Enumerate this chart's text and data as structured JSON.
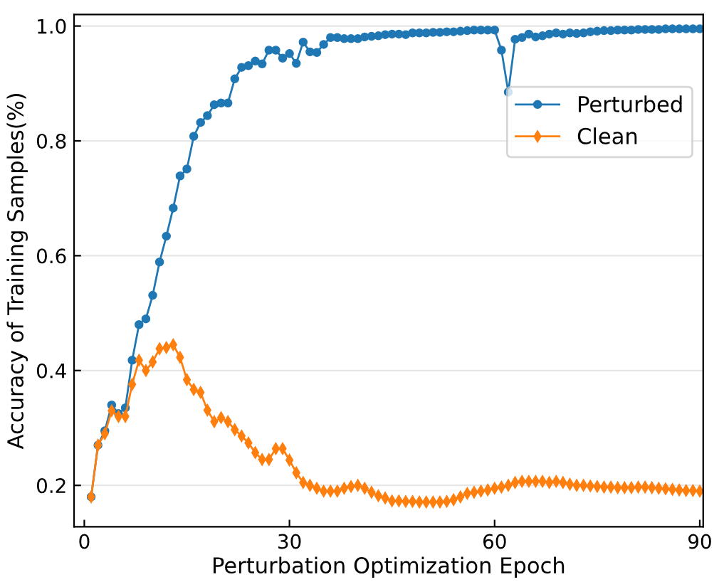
{
  "chart_data": {
    "type": "line",
    "xlabel": "Perturbation Optimization Epoch",
    "ylabel": "Accuracy of Training Samples(%)",
    "x": [
      1,
      2,
      3,
      4,
      5,
      6,
      7,
      8,
      9,
      10,
      11,
      12,
      13,
      14,
      15,
      16,
      17,
      18,
      19,
      20,
      21,
      22,
      23,
      24,
      25,
      26,
      27,
      28,
      29,
      30,
      31,
      32,
      33,
      34,
      35,
      36,
      37,
      38,
      39,
      40,
      41,
      42,
      43,
      44,
      45,
      46,
      47,
      48,
      49,
      50,
      51,
      52,
      53,
      54,
      55,
      56,
      57,
      58,
      59,
      60,
      61,
      62,
      63,
      64,
      65,
      66,
      67,
      68,
      69,
      70,
      71,
      72,
      73,
      74,
      75,
      76,
      77,
      78,
      79,
      80,
      81,
      82,
      83,
      84,
      85,
      86,
      87,
      88,
      89,
      90
    ],
    "series": [
      {
        "name": "Perturbed",
        "color": "#1f77b4",
        "marker": "circle",
        "values": [
          0.18,
          0.27,
          0.295,
          0.34,
          0.325,
          0.335,
          0.418,
          0.48,
          0.49,
          0.531,
          0.589,
          0.634,
          0.683,
          0.739,
          0.751,
          0.808,
          0.832,
          0.844,
          0.863,
          0.866,
          0.866,
          0.908,
          0.928,
          0.931,
          0.939,
          0.934,
          0.958,
          0.958,
          0.944,
          0.952,
          0.935,
          0.972,
          0.955,
          0.954,
          0.968,
          0.98,
          0.98,
          0.978,
          0.978,
          0.978,
          0.981,
          0.982,
          0.983,
          0.985,
          0.986,
          0.986,
          0.985,
          0.988,
          0.988,
          0.988,
          0.989,
          0.989,
          0.99,
          0.99,
          0.991,
          0.992,
          0.993,
          0.993,
          0.993,
          0.993,
          0.958,
          0.885,
          0.977,
          0.98,
          0.986,
          0.981,
          0.983,
          0.986,
          0.988,
          0.986,
          0.988,
          0.987,
          0.988,
          0.99,
          0.991,
          0.992,
          0.992,
          0.993,
          0.993,
          0.993,
          0.994,
          0.994,
          0.994,
          0.994,
          0.995,
          0.995,
          0.995,
          0.995,
          0.995,
          0.995
        ]
      },
      {
        "name": "Clean",
        "color": "#ff7f0e",
        "marker": "diamond",
        "values": [
          0.18,
          0.27,
          0.29,
          0.33,
          0.32,
          0.32,
          0.376,
          0.418,
          0.4,
          0.415,
          0.438,
          0.44,
          0.445,
          0.423,
          0.384,
          0.367,
          0.362,
          0.331,
          0.311,
          0.318,
          0.311,
          0.297,
          0.286,
          0.274,
          0.257,
          0.245,
          0.245,
          0.264,
          0.264,
          0.244,
          0.222,
          0.205,
          0.2,
          0.195,
          0.19,
          0.19,
          0.19,
          0.195,
          0.198,
          0.2,
          0.195,
          0.188,
          0.182,
          0.178,
          0.173,
          0.173,
          0.172,
          0.172,
          0.171,
          0.171,
          0.171,
          0.171,
          0.172,
          0.175,
          0.18,
          0.186,
          0.188,
          0.19,
          0.192,
          0.195,
          0.197,
          0.2,
          0.205,
          0.207,
          0.207,
          0.207,
          0.207,
          0.205,
          0.207,
          0.205,
          0.202,
          0.2,
          0.2,
          0.199,
          0.198,
          0.197,
          0.197,
          0.196,
          0.196,
          0.196,
          0.197,
          0.197,
          0.196,
          0.195,
          0.194,
          0.193,
          0.192,
          0.191,
          0.191,
          0.19
        ]
      }
    ],
    "xlim": [
      -1.5,
      90.5
    ],
    "xticks": [
      0,
      30,
      60,
      90
    ],
    "ylim": [
      0.128,
      1.02
    ],
    "yticks": [
      0.2,
      0.4,
      0.6,
      0.8,
      {
        "value": 1.0,
        "label": "1.0"
      }
    ],
    "grid": "y",
    "legend": "top right",
    "line_style": "solid"
  }
}
